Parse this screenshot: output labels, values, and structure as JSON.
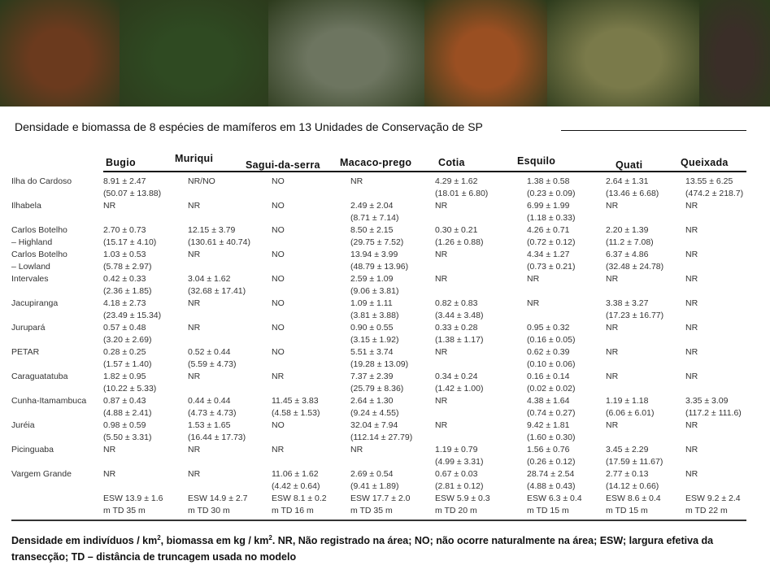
{
  "photos": [
    {
      "subject": "bugio",
      "color": "#6b3a1e"
    },
    {
      "subject": "muriqui",
      "color": "#2f4a22"
    },
    {
      "subject": "sagui-da-serra",
      "color": "#6d7560"
    },
    {
      "subject": "cotia",
      "color": "#9a4f22"
    },
    {
      "subject": "quati",
      "color": "#7a7a4a"
    },
    {
      "subject": "queixada",
      "color": "#3a2e28"
    }
  ],
  "title": "Densidade e biomassa de 8 espécies de mamíferos  em 13 Unidades de Conservação de SP",
  "columns": [
    "Bugio",
    "Muriqui",
    "Sagui-da-serra",
    "Macaco-prego",
    "Cotia",
    "Esquilo",
    "Quati",
    "Queixada"
  ],
  "rows": [
    {
      "site": [
        "Ilha do Cardoso"
      ],
      "cells": [
        [
          "8.91 ± 2.47",
          "(50.07 ± 13.88)"
        ],
        [
          "NR/NO"
        ],
        [
          "NO"
        ],
        [
          "NR"
        ],
        [
          "4.29 ± 1.62",
          "(18.01 ± 6.80)"
        ],
        [
          "1.38 ± 0.58",
          "(0.23 ± 0.09)"
        ],
        [
          "2.64 ± 1.31",
          "(13.46 ± 6.68)"
        ],
        [
          "13.55 ± 6.25",
          "(474.2 ± 218.7)"
        ]
      ]
    },
    {
      "site": [
        "Ilhabela"
      ],
      "cells": [
        [
          "NR"
        ],
        [
          "NR"
        ],
        [
          "NO"
        ],
        [
          "2.49 ± 2.04",
          "(8.71 ± 7.14)"
        ],
        [
          "NR"
        ],
        [
          "6.99 ± 1.99",
          "(1.18 ± 0.33)"
        ],
        [
          "NR"
        ],
        [
          "NR"
        ]
      ]
    },
    {
      "site": [
        "Carlos Botelho",
        "– Highland"
      ],
      "cells": [
        [
          "2.70 ± 0.73",
          "(15.17 ± 4.10)"
        ],
        [
          "12.15 ± 3.79",
          "(130.61 ± 40.74)"
        ],
        [
          "NO"
        ],
        [
          "8.50 ± 2.15",
          "(29.75 ± 7.52)"
        ],
        [
          "0.30 ± 0.21",
          "(1.26 ± 0.88)"
        ],
        [
          "4.26 ± 0.71",
          "(0.72 ± 0.12)"
        ],
        [
          "2.20 ± 1.39",
          "(11.2 ± 7.08)"
        ],
        [
          "NR"
        ]
      ]
    },
    {
      "site": [
        "Carlos Botelho",
        "– Lowland"
      ],
      "cells": [
        [
          "1.03 ± 0.53",
          "(5.78 ± 2.97)"
        ],
        [
          "NR"
        ],
        [
          "NO"
        ],
        [
          "13.94 ± 3.99",
          "(48.79 ± 13.96)"
        ],
        [
          "NR"
        ],
        [
          "4.34 ± 1.27",
          "(0.73 ± 0.21)"
        ],
        [
          "6.37 ± 4.86",
          "(32.48 ± 24.78)"
        ],
        [
          "NR"
        ]
      ]
    },
    {
      "site": [
        "Intervales"
      ],
      "cells": [
        [
          "0.42 ± 0.33",
          "(2.36 ± 1.85)"
        ],
        [
          "3.04 ± 1.62",
          "(32.68 ± 17.41)"
        ],
        [
          "NO"
        ],
        [
          "2.59 ± 1.09",
          "(9.06 ± 3.81)"
        ],
        [
          "NR"
        ],
        [
          "NR"
        ],
        [
          "NR"
        ],
        [
          "NR"
        ]
      ]
    },
    {
      "site": [
        "Jacupiranga"
      ],
      "cells": [
        [
          "4.18 ± 2.73",
          "(23.49 ± 15.34)"
        ],
        [
          "NR"
        ],
        [
          "NO"
        ],
        [
          "1.09 ± 1.11",
          "(3.81 ± 3.88)"
        ],
        [
          "0.82 ± 0.83",
          "(3.44 ± 3.48)"
        ],
        [
          "NR"
        ],
        [
          "3.38 ± 3.27",
          "(17.23 ± 16.77)"
        ],
        [
          "NR"
        ]
      ]
    },
    {
      "site": [
        "Jurupará"
      ],
      "cells": [
        [
          "0.57 ± 0.48",
          "(3.20 ± 2.69)"
        ],
        [
          "NR"
        ],
        [
          "NO"
        ],
        [
          "0.90 ± 0.55",
          "(3.15 ± 1.92)"
        ],
        [
          "0.33 ± 0.28",
          "(1.38 ± 1.17)"
        ],
        [
          "0.95 ± 0.32",
          "(0.16 ± 0.05)"
        ],
        [
          "NR"
        ],
        [
          "NR"
        ]
      ]
    },
    {
      "site": [
        "PETAR"
      ],
      "cells": [
        [
          "0.28 ± 0.25",
          "(1.57 ± 1.40)"
        ],
        [
          "0.52 ± 0.44",
          "(5.59 ± 4.73)"
        ],
        [
          "NO"
        ],
        [
          "5.51 ± 3.74",
          "(19.28 ± 13.09)"
        ],
        [
          "NR"
        ],
        [
          "0.62 ± 0.39",
          "(0.10 ± 0.06)"
        ],
        [
          "NR"
        ],
        [
          "NR"
        ]
      ]
    },
    {
      "site": [
        "Caraguatatuba"
      ],
      "cells": [
        [
          "1.82 ± 0.95",
          "(10.22 ± 5.33)"
        ],
        [
          "NR"
        ],
        [
          "NR"
        ],
        [
          "7.37 ± 2.39",
          "(25.79 ± 8.36)"
        ],
        [
          "0.34 ± 0.24",
          "(1.42 ± 1.00)"
        ],
        [
          "0.16 ± 0.14",
          "(0.02 ± 0.02)"
        ],
        [
          "NR"
        ],
        [
          "NR"
        ]
      ]
    },
    {
      "site": [
        "Cunha-Itamambuca"
      ],
      "cells": [
        [
          "0.87 ± 0.43",
          "(4.88 ± 2.41)"
        ],
        [
          "0.44 ± 0.44",
          "(4.73 ± 4.73)"
        ],
        [
          "11.45 ± 3.83",
          "(4.58 ± 1.53)"
        ],
        [
          "2.64 ± 1.30",
          "(9.24 ± 4.55)"
        ],
        [
          "NR"
        ],
        [
          "4.38 ± 1.64",
          "(0.74 ± 0.27)"
        ],
        [
          "1.19 ± 1.18",
          "(6.06 ± 6.01)"
        ],
        [
          "3.35 ± 3.09",
          "(117.2 ± 111.6)"
        ]
      ]
    },
    {
      "site": [
        "Juréia"
      ],
      "cells": [
        [
          "0.98 ± 0.59",
          "(5.50 ± 3.31)"
        ],
        [
          "1.53 ± 1.65",
          "(16.44 ± 17.73)"
        ],
        [
          "NO"
        ],
        [
          "32.04 ± 7.94",
          "(112.14 ± 27.79)"
        ],
        [
          "NR"
        ],
        [
          "9.42 ± 1.81",
          "(1.60 ± 0.30)"
        ],
        [
          "NR"
        ],
        [
          "NR"
        ]
      ]
    },
    {
      "site": [
        "Picinguaba"
      ],
      "cells": [
        [
          "NR"
        ],
        [
          "NR"
        ],
        [
          "NR"
        ],
        [
          "NR"
        ],
        [
          "1.19 ± 0.79",
          "(4.99 ± 3.31)"
        ],
        [
          "1.56 ± 0.76",
          "(0.26 ± 0.12)"
        ],
        [
          "3.45 ± 2.29",
          "(17.59 ± 11.67)"
        ],
        [
          "NR"
        ]
      ]
    },
    {
      "site": [
        "Vargem Grande"
      ],
      "cells": [
        [
          "NR"
        ],
        [
          "NR"
        ],
        [
          "11.06 ± 1.62",
          "(4.42 ± 0.64)"
        ],
        [
          "2.69 ± 0.54",
          "(9.41 ± 1.89)"
        ],
        [
          "0.67 ± 0.03",
          "(2.81 ± 0.12)"
        ],
        [
          "28.74 ± 2.54",
          "(4.88 ± 0.43)"
        ],
        [
          "2.77 ± 0.13",
          "(14.12 ± 0.66)"
        ],
        [
          "NR"
        ]
      ]
    },
    {
      "site": [
        ""
      ],
      "cells": [
        [
          "ESW 13.9 ± 1.6",
          "m TD 35 m"
        ],
        [
          "ESW 14.9 ± 2.7",
          "m TD 30 m"
        ],
        [
          "ESW 8.1 ± 0.2",
          "m TD 16 m"
        ],
        [
          "ESW 17.7 ± 2.0",
          "m TD 35 m"
        ],
        [
          "ESW 5.9 ± 0.3",
          "m TD 20 m"
        ],
        [
          "ESW 6.3 ± 0.4",
          "m TD 15 m"
        ],
        [
          "ESW 8.6 ± 0.4",
          "m TD 15 m"
        ],
        [
          "ESW 9.2 ± 2.4",
          "m TD 22 m"
        ]
      ]
    }
  ],
  "caption": {
    "part1": "Densidade em indivíduos / km",
    "sup1": "2",
    "part2": ", biomassa  em kg / km",
    "sup2": "2",
    "part3": ".  NR, Não registrado na área; NO; não ocorre naturalmente na área; ESW; largura efetiva da transecção; TD – distância de truncagem usada no modelo"
  }
}
